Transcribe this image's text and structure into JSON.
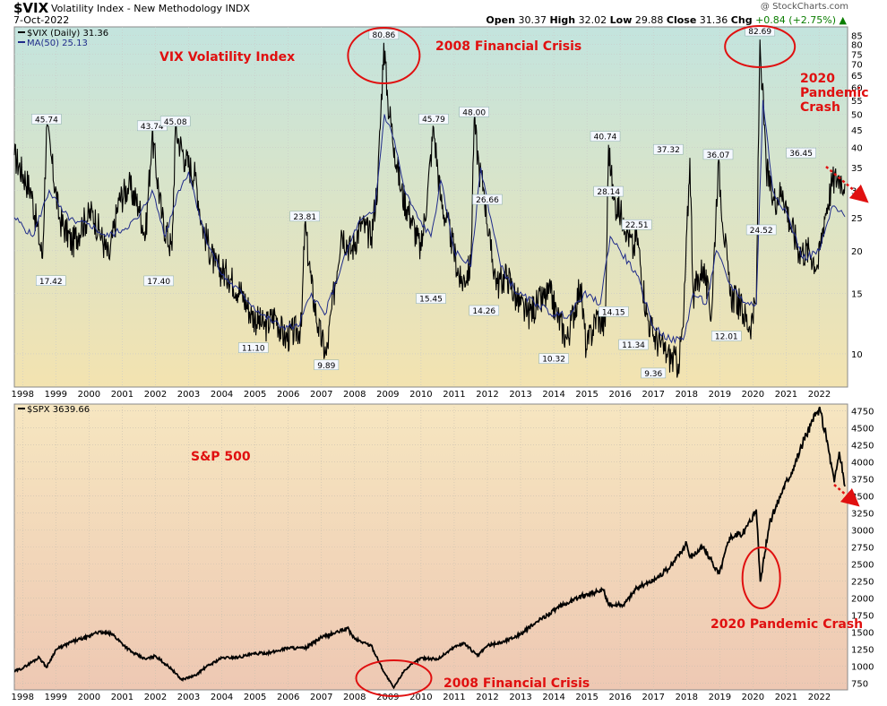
{
  "header": {
    "symbol": "$VIX",
    "name": "Volatility Index - New Methodology INDX",
    "date": "7-Oct-2022",
    "credit": "@ StockCharts.com",
    "open_label": "Open",
    "open": "30.37",
    "high_label": "High",
    "high": "32.02",
    "low_label": "Low",
    "low": "29.88",
    "close_label": "Close",
    "close": "31.36",
    "chg_label": "Chg",
    "chg": "+0.84 (+2.75%)",
    "chg_arrow": "▲"
  },
  "colors": {
    "price_line": "#000000",
    "ma_line": "#1f2b8a",
    "annotation": "#e01010",
    "vix_bg_top": "#c3e4de",
    "vix_bg_bottom": "#f3e3b0",
    "spx_bg_top": "#f6e6c0",
    "spx_bg_bottom": "#eec8b3"
  },
  "chart_data": [
    {
      "type": "line",
      "panel": "vix",
      "legend": [
        "$VIX (Daily) 31.36",
        "MA(50) 25.13"
      ],
      "title": "VIX Volatility Index",
      "y_scale": "log",
      "ylim": [
        8,
        90
      ],
      "x_labels": [
        "1998",
        "1999",
        "2000",
        "2001",
        "2002",
        "2003",
        "2004",
        "2005",
        "2006",
        "2007",
        "2008",
        "2009",
        "2010",
        "2011",
        "2012",
        "2013",
        "2014",
        "2015",
        "2016",
        "2017",
        "2018",
        "2019",
        "2020",
        "2021",
        "2022"
      ],
      "y_ticks": [
        10,
        15,
        20,
        25,
        30,
        35,
        40,
        45,
        50,
        55,
        60,
        65,
        70,
        75,
        80,
        85
      ],
      "series": [
        {
          "name": "$VIX (Daily)",
          "x": [
            1997.75,
            1998.25,
            1998.6,
            1998.72,
            1998.85,
            1999.1,
            1999.5,
            1999.8,
            2000.1,
            2000.3,
            2000.6,
            2000.9,
            2001.2,
            2001.5,
            2001.7,
            2001.9,
            2002.2,
            2002.5,
            2002.6,
            2002.9,
            2003.2,
            2003.4,
            2003.8,
            2004.2,
            2004.6,
            2004.9,
            2005.3,
            2005.6,
            2005.9,
            2006.4,
            2006.5,
            2006.7,
            2006.9,
            2007.15,
            2007.6,
            2007.9,
            2008.2,
            2008.5,
            2008.7,
            2008.88,
            2009.0,
            2009.2,
            2009.4,
            2009.7,
            2010.0,
            2010.2,
            2010.38,
            2010.6,
            2010.9,
            2011.2,
            2011.5,
            2011.6,
            2011.75,
            2011.9,
            2012.1,
            2012.3,
            2012.6,
            2012.9,
            2013.2,
            2013.5,
            2013.9,
            2014.1,
            2014.4,
            2014.8,
            2014.98,
            2015.3,
            2015.55,
            2015.65,
            2015.8,
            2016.1,
            2016.4,
            2016.5,
            2016.8,
            2017.0,
            2017.4,
            2017.75,
            2017.9,
            2018.1,
            2018.2,
            2018.5,
            2018.75,
            2018.95,
            2019.3,
            2019.6,
            2019.9,
            2020.1,
            2020.21,
            2020.4,
            2020.6,
            2020.9,
            2021.1,
            2021.4,
            2021.7,
            2021.95,
            2022.15,
            2022.4,
            2022.6,
            2022.77
          ],
          "values": [
            38,
            30,
            19,
            45.74,
            38,
            25,
            21,
            24,
            26,
            23,
            19,
            28,
            31,
            27,
            22,
            43.74,
            25,
            20,
            45.08,
            37,
            33,
            24,
            18,
            17,
            15,
            13,
            12,
            13,
            11.1,
            12,
            23.81,
            16,
            12,
            9.89,
            23,
            20,
            24,
            22,
            32,
            80.86,
            55,
            40,
            30,
            25,
            20,
            30,
            45.79,
            28,
            22,
            16,
            18,
            48,
            35,
            30,
            20,
            16,
            17,
            14.26,
            13,
            14,
            15,
            13,
            11,
            16,
            10.32,
            13,
            12,
            40.74,
            28.14,
            25,
            20,
            22.51,
            13,
            11.34,
            10,
            9.36,
            12,
            37.32,
            15,
            18,
            13,
            36.07,
            15,
            14,
            12.01,
            14,
            82.69,
            35,
            28,
            30,
            24.52,
            20,
            20,
            18,
            25,
            32,
            33,
            31.36
          ]
        },
        {
          "name": "MA(50)",
          "x": [
            1997.75,
            1998.3,
            1998.8,
            1999.2,
            1999.6,
            2000.0,
            2000.5,
            2001.0,
            2001.5,
            2001.9,
            2002.3,
            2002.7,
            2003.0,
            2003.5,
            2004.0,
            2004.6,
            2005.2,
            2005.8,
            2006.3,
            2006.7,
            2007.1,
            2007.6,
            2008.1,
            2008.6,
            2008.9,
            2009.2,
            2009.5,
            2009.9,
            2010.3,
            2010.6,
            2011.0,
            2011.5,
            2011.8,
            2012.0,
            2012.4,
            2012.9,
            2013.5,
            2014.0,
            2014.5,
            2014.9,
            2015.4,
            2015.7,
            2016.0,
            2016.5,
            2017.0,
            2017.5,
            2017.9,
            2018.2,
            2018.6,
            2018.9,
            2019.3,
            2019.8,
            2020.1,
            2020.3,
            2020.6,
            2021.0,
            2021.5,
            2022.0,
            2022.4,
            2022.77
          ],
          "values": [
            25,
            22,
            30,
            26,
            24,
            24,
            22,
            23,
            25,
            30,
            22,
            30,
            34,
            22,
            17,
            15,
            13,
            12,
            12,
            15,
            13,
            18,
            24,
            26,
            50,
            42,
            30,
            25,
            22,
            32,
            20,
            18,
            35,
            28,
            18,
            15,
            14,
            13,
            13,
            15,
            14,
            22,
            20,
            17,
            12,
            11,
            11,
            15,
            14,
            20,
            16,
            14,
            14,
            55,
            30,
            26,
            19,
            20,
            27,
            25.13
          ]
        }
      ],
      "point_labels": [
        {
          "x": 1998.72,
          "y": 45.74,
          "text": "45.74"
        },
        {
          "x": 1998.85,
          "y": 17.42,
          "text": "17.42"
        },
        {
          "x": 2001.9,
          "y": 43.74,
          "text": "43.74"
        },
        {
          "x": 2002.1,
          "y": 17.4,
          "text": "17.40"
        },
        {
          "x": 2002.6,
          "y": 45.08,
          "text": "45.08"
        },
        {
          "x": 2004.95,
          "y": 11.1,
          "text": "11.10"
        },
        {
          "x": 2006.5,
          "y": 23.81,
          "text": "23.81"
        },
        {
          "x": 2007.15,
          "y": 9.89,
          "text": "9.89"
        },
        {
          "x": 2008.88,
          "y": 80.86,
          "text": "80.86"
        },
        {
          "x": 2010.38,
          "y": 45.79,
          "text": "45.79"
        },
        {
          "x": 2010.3,
          "y": 15.45,
          "text": "15.45"
        },
        {
          "x": 2011.6,
          "y": 48.0,
          "text": "48.00"
        },
        {
          "x": 2012.0,
          "y": 26.66,
          "text": "26.66"
        },
        {
          "x": 2011.9,
          "y": 14.26,
          "text": "14.26"
        },
        {
          "x": 2014.0,
          "y": 10.32,
          "text": "10.32"
        },
        {
          "x": 2015.55,
          "y": 40.74,
          "text": "40.74"
        },
        {
          "x": 2015.65,
          "y": 28.14,
          "text": "28.14"
        },
        {
          "x": 2015.8,
          "y": 14.15,
          "text": "14.15"
        },
        {
          "x": 2016.5,
          "y": 22.51,
          "text": "22.51"
        },
        {
          "x": 2016.4,
          "y": 11.34,
          "text": "11.34"
        },
        {
          "x": 2017.0,
          "y": 9.36,
          "text": "9.36"
        },
        {
          "x": 2017.45,
          "y": 37.32,
          "text": "37.32"
        },
        {
          "x": 2018.95,
          "y": 36.07,
          "text": "36.07"
        },
        {
          "x": 2019.2,
          "y": 12.01,
          "text": "12.01"
        },
        {
          "x": 2020.21,
          "y": 82.69,
          "text": "82.69"
        },
        {
          "x": 2020.25,
          "y": 24.52,
          "text": "24.52"
        },
        {
          "x": 2021.45,
          "y": 36.45,
          "text": "36.45"
        }
      ],
      "annotations": [
        "VIX Volatility Index",
        "2008 Financial Crisis",
        "2020 Pandemic Crash"
      ]
    },
    {
      "type": "line",
      "panel": "spx",
      "legend": [
        "$SPX 3639.66"
      ],
      "title": "S&P 500",
      "ylim": [
        650,
        4850
      ],
      "x_labels": [
        "1998",
        "1999",
        "2000",
        "2001",
        "2002",
        "2003",
        "2004",
        "2005",
        "2006",
        "2007",
        "2008",
        "2009",
        "2010",
        "2011",
        "2012",
        "2013",
        "2014",
        "2015",
        "2016",
        "2017",
        "2018",
        "2019",
        "2020",
        "2021",
        "2022"
      ],
      "y_ticks": [
        750,
        1000,
        1250,
        1500,
        1750,
        2000,
        2250,
        2500,
        2750,
        3000,
        3250,
        3500,
        3750,
        4000,
        4250,
        4500,
        4750
      ],
      "series": [
        {
          "name": "$SPX",
          "x": [
            1997.75,
            1998.0,
            1998.5,
            1998.72,
            1999.0,
            1999.5,
            2000.0,
            2000.2,
            2000.7,
            2001.0,
            2001.3,
            2001.7,
            2002.0,
            2002.5,
            2002.78,
            2003.2,
            2003.5,
            2004.0,
            2004.5,
            2005.0,
            2005.5,
            2006.0,
            2006.5,
            2007.0,
            2007.5,
            2007.78,
            2008.0,
            2008.5,
            2008.9,
            2009.18,
            2009.5,
            2010.0,
            2010.5,
            2011.0,
            2011.3,
            2011.7,
            2012.0,
            2012.5,
            2013.0,
            2013.5,
            2014.0,
            2014.5,
            2015.0,
            2015.5,
            2015.65,
            2016.1,
            2016.5,
            2017.0,
            2017.5,
            2018.0,
            2018.1,
            2018.5,
            2018.98,
            2019.3,
            2019.7,
            2020.1,
            2020.22,
            2020.5,
            2020.9,
            2021.2,
            2021.6,
            2021.99,
            2022.2,
            2022.45,
            2022.6,
            2022.77
          ],
          "values": [
            920,
            970,
            1130,
            980,
            1240,
            1360,
            1430,
            1500,
            1470,
            1330,
            1200,
            1100,
            1150,
            950,
            800,
            860,
            980,
            1120,
            1130,
            1180,
            1200,
            1270,
            1260,
            1420,
            1500,
            1560,
            1400,
            1300,
            900,
            680,
            940,
            1120,
            1100,
            1280,
            1340,
            1150,
            1300,
            1360,
            1470,
            1650,
            1820,
            1950,
            2060,
            2110,
            1900,
            1900,
            2150,
            2260,
            2450,
            2800,
            2600,
            2750,
            2350,
            2900,
            2950,
            3300,
            2240,
            3100,
            3600,
            3900,
            4400,
            4780,
            4400,
            3700,
            4150,
            3639.66
          ]
        }
      ],
      "annotations": [
        "S&P 500",
        "2008 Financial Crisis",
        "2020 Pandemic Crash"
      ]
    }
  ]
}
